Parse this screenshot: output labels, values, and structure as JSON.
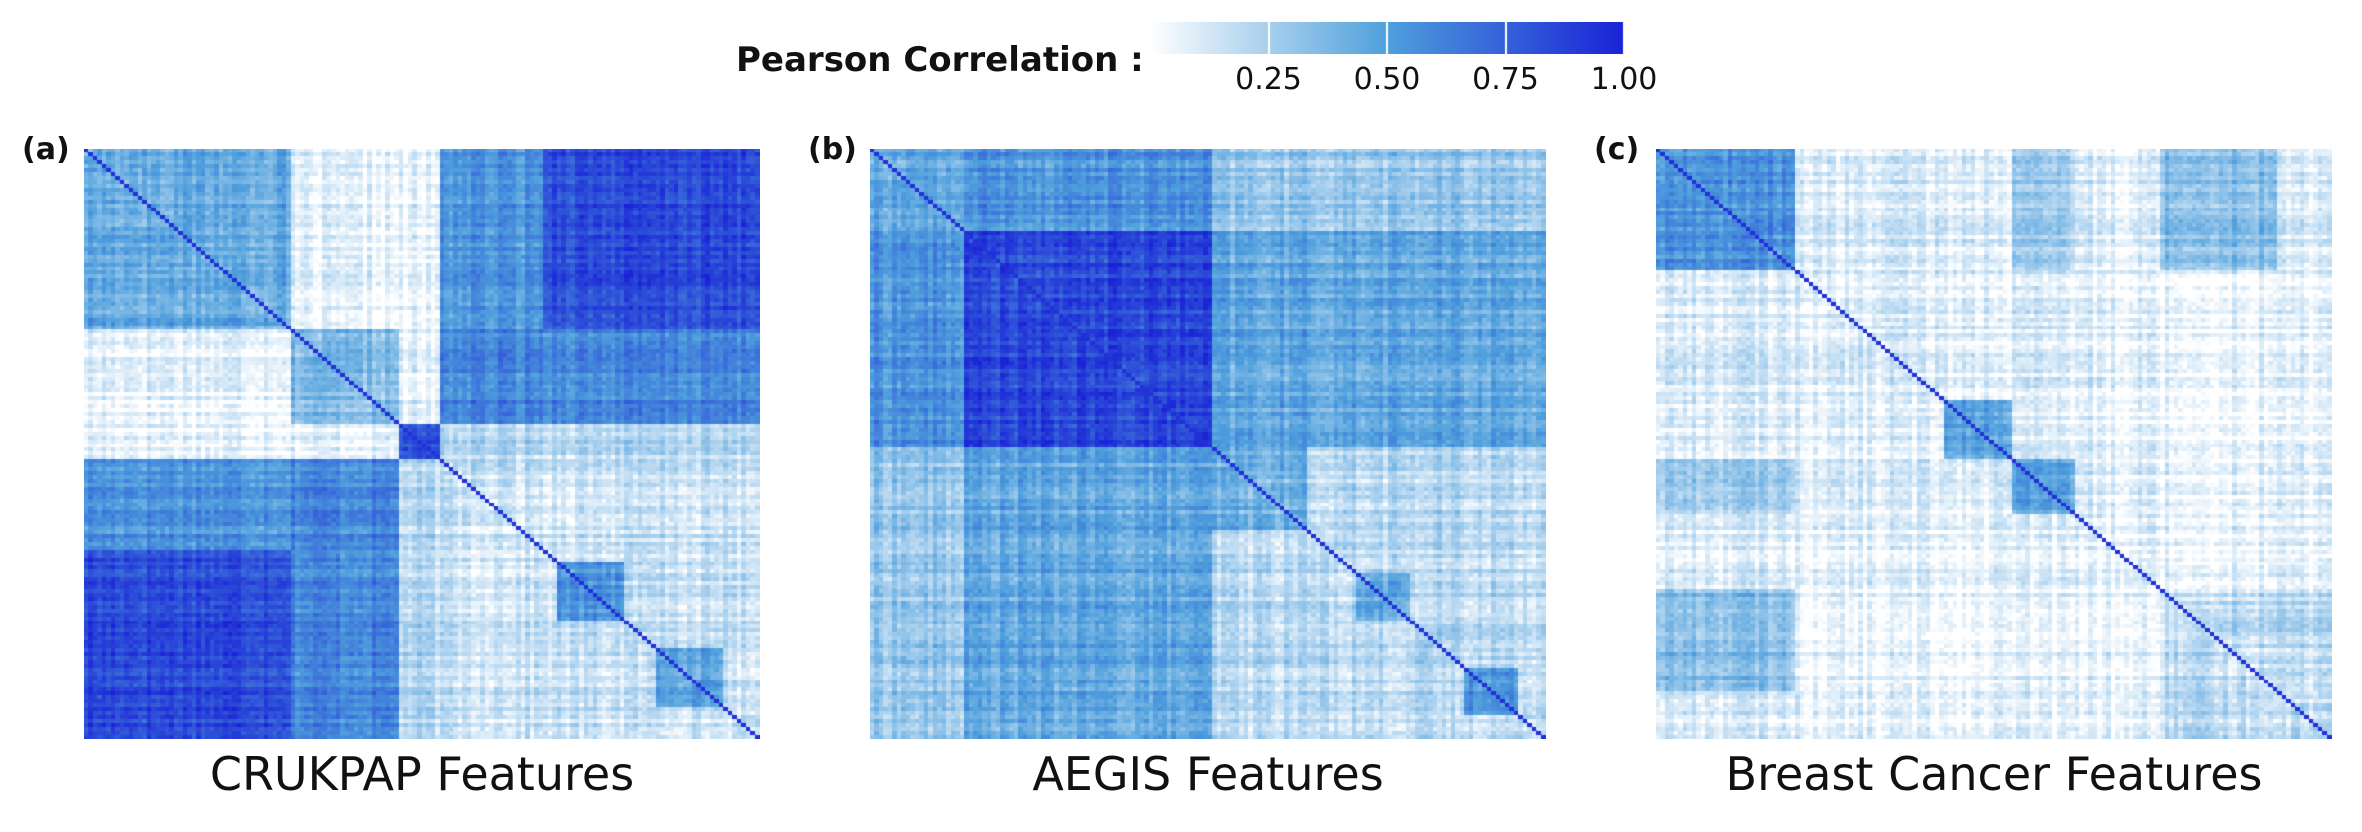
{
  "legend": {
    "title": "Pearson Correlation :",
    "ticks": [
      "0.25",
      "0.50",
      "0.75",
      "1.00"
    ],
    "tick_values": [
      0.25,
      0.5,
      0.75,
      1.0
    ],
    "range": [
      0,
      1.0
    ],
    "colors": {
      "low": "#ffffff",
      "mid": "#4f9fdc",
      "high": "#1a22d6"
    }
  },
  "chart_data": [
    {
      "type": "heatmap",
      "panel_label": "(a)",
      "xlabel": "CRUKPAP Features",
      "title": "",
      "matrix_kind": "symmetric correlation matrix, diagonal = 1.00",
      "blocks": [
        {
          "rows": [
            0.0,
            0.31
          ],
          "cols": [
            0.0,
            0.31
          ],
          "value": 0.45
        },
        {
          "rows": [
            0.31,
            0.47
          ],
          "cols": [
            0.31,
            0.47
          ],
          "value": 0.35
        },
        {
          "rows": [
            0.47,
            0.53
          ],
          "cols": [
            0.47,
            0.53
          ],
          "value": 0.8
        },
        {
          "rows": [
            0.53,
            1.0
          ],
          "cols": [
            0.53,
            1.0
          ],
          "value": 0.15
        },
        {
          "rows": [
            0.0,
            0.31
          ],
          "cols": [
            0.53,
            0.68
          ],
          "value": 0.55
        },
        {
          "rows": [
            0.0,
            0.31
          ],
          "cols": [
            0.68,
            1.0
          ],
          "value": 0.85
        },
        {
          "rows": [
            0.31,
            0.47
          ],
          "cols": [
            0.53,
            0.68
          ],
          "value": 0.6
        },
        {
          "rows": [
            0.31,
            0.47
          ],
          "cols": [
            0.68,
            1.0
          ],
          "value": 0.6
        },
        {
          "rows": [
            0.47,
            0.53
          ],
          "cols": [
            0.53,
            1.0
          ],
          "value": 0.2
        },
        {
          "rows": [
            0.53,
            1.0
          ],
          "cols": [
            0.53,
            0.68
          ],
          "value": 0.15
        },
        {
          "rows": [
            0.7,
            0.8
          ],
          "cols": [
            0.7,
            0.8
          ],
          "value": 0.55
        },
        {
          "rows": [
            0.85,
            0.95
          ],
          "cols": [
            0.85,
            0.95
          ],
          "value": 0.5
        }
      ]
    },
    {
      "type": "heatmap",
      "panel_label": "(b)",
      "xlabel": "AEGIS Features",
      "title": "",
      "matrix_kind": "symmetric correlation matrix, diagonal = 1.00",
      "blocks": [
        {
          "rows": [
            0.0,
            0.14
          ],
          "cols": [
            0.0,
            0.14
          ],
          "value": 0.45
        },
        {
          "rows": [
            0.14,
            0.51
          ],
          "cols": [
            0.14,
            0.51
          ],
          "value": 0.85
        },
        {
          "rows": [
            0.51,
            1.0
          ],
          "cols": [
            0.51,
            1.0
          ],
          "value": 0.2
        },
        {
          "rows": [
            0.0,
            0.14
          ],
          "cols": [
            0.14,
            0.51
          ],
          "value": 0.55
        },
        {
          "rows": [
            0.51,
            1.0
          ],
          "cols": [
            0.0,
            0.14
          ],
          "value": 0.3
        },
        {
          "rows": [
            0.51,
            1.0
          ],
          "cols": [
            0.14,
            0.51
          ],
          "value": 0.45
        },
        {
          "rows": [
            0.51,
            0.65
          ],
          "cols": [
            0.51,
            0.65
          ],
          "value": 0.4
        },
        {
          "rows": [
            0.72,
            0.8
          ],
          "cols": [
            0.72,
            0.8
          ],
          "value": 0.45
        },
        {
          "rows": [
            0.88,
            0.96
          ],
          "cols": [
            0.88,
            0.96
          ],
          "value": 0.55
        }
      ]
    },
    {
      "type": "heatmap",
      "panel_label": "(c)",
      "xlabel": "Breast Cancer Features",
      "title": "",
      "matrix_kind": "symmetric correlation matrix, diagonal = 1.00",
      "blocks": [
        {
          "rows": [
            0.0,
            0.21
          ],
          "cols": [
            0.0,
            0.21
          ],
          "value": 0.55
        },
        {
          "rows": [
            0.0,
            0.21
          ],
          "cols": [
            0.21,
            1.0
          ],
          "value": 0.1
        },
        {
          "rows": [
            0.21,
            0.75
          ],
          "cols": [
            0.21,
            0.75
          ],
          "value": 0.08
        },
        {
          "rows": [
            0.43,
            0.53
          ],
          "cols": [
            0.43,
            0.53
          ],
          "value": 0.5
        },
        {
          "rows": [
            0.53,
            0.62
          ],
          "cols": [
            0.53,
            0.62
          ],
          "value": 0.45
        },
        {
          "rows": [
            0.75,
            0.92
          ],
          "cols": [
            0.75,
            0.92
          ],
          "value": 0.15
        },
        {
          "rows": [
            0.75,
            1.0
          ],
          "cols": [
            0.75,
            1.0
          ],
          "value": 0.18
        },
        {
          "rows": [
            0.75,
            0.92
          ],
          "cols": [
            0.0,
            0.21
          ],
          "value": 0.35
        },
        {
          "rows": [
            0.53,
            0.62
          ],
          "cols": [
            0.0,
            0.21
          ],
          "value": 0.25
        }
      ]
    }
  ]
}
